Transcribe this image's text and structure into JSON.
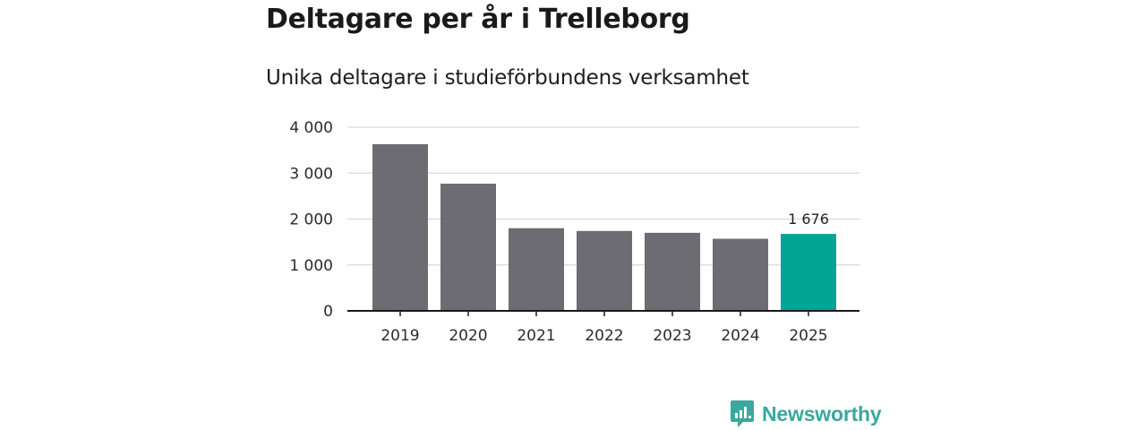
{
  "chart_data": {
    "type": "bar",
    "title": "Deltagare per år i Trelleborg",
    "subtitle": "Unika deltagare i studieförbundens verksamhet",
    "xlabel": "",
    "ylabel": "",
    "categories": [
      "2019",
      "2020",
      "2021",
      "2022",
      "2023",
      "2024",
      "2025"
    ],
    "values": [
      3630,
      2770,
      1800,
      1740,
      1700,
      1570,
      1676
    ],
    "ylim": [
      0,
      4000
    ],
    "yticks": [
      0,
      1000,
      2000,
      3000,
      4000
    ],
    "ytick_labels": [
      "0",
      "1 000",
      "2 000",
      "3 000",
      "4 000"
    ],
    "grid": true,
    "highlight_index": 6,
    "annotations": [
      {
        "category": "2025",
        "text": "1 676"
      }
    ],
    "colors": {
      "bar": "#6d6c72",
      "highlight": "#00a596",
      "grid": "#d9d9d9",
      "axis": "#1a1a1a"
    }
  },
  "brand": {
    "name": "Newsworthy",
    "icon": "newsworthy-logo-icon",
    "color": "#3aa89c"
  }
}
